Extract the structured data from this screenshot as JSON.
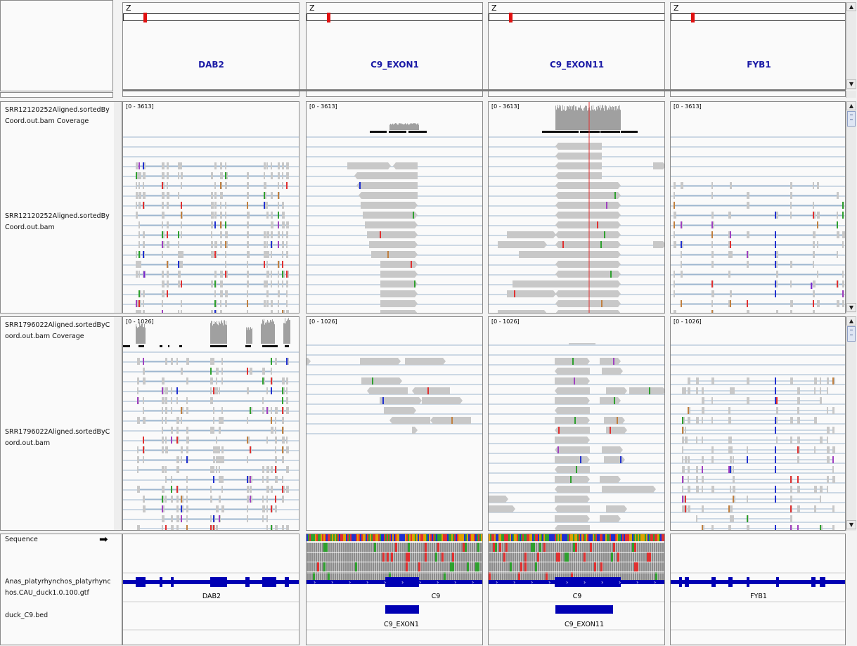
{
  "header": {
    "chromosome_label": "Z",
    "loci": [
      "DAB2",
      "C9_EXON1",
      "C9_EXON11",
      "FYB1"
    ]
  },
  "tracks": {
    "coverage_1": {
      "name": "SRR12120252Aligned.sortedByCoord.out.bam Coverage",
      "range": "[0 - 3613]"
    },
    "alignment_1": {
      "name": "SRR12120252Aligned.sortedByCoord.out.bam"
    },
    "coverage_2": {
      "name": "SRR1796022Aligned.sortedByCoord.out.bam Coverage",
      "range": "[0 - 1026]"
    },
    "alignment_2": {
      "name": "SRR1796022Aligned.sortedByCoord.out.bam"
    },
    "sequence": {
      "name": "Sequence",
      "arrow": "➡"
    },
    "gtf": {
      "name": "Anas_platyrhynchos_platyrhynchos.CAU_duck1.0.100.gtf",
      "features": [
        "DAB2",
        "C9",
        "C9",
        "FYB1"
      ]
    },
    "bed": {
      "name": "duck_C9.bed",
      "features": [
        "",
        "C9_EXON1",
        "C9_EXON11",
        ""
      ]
    }
  },
  "colors": {
    "locus_text": "#1a1aa6",
    "gene_feature": "#0000b4",
    "read": "#c8c8c8",
    "coverage": "#a0a0a0",
    "ideogram_marker": "#e01010"
  },
  "icons": {
    "scroll_up": "up-arrow-icon",
    "scroll_down": "down-arrow-icon",
    "sequence_strand": "right-arrow-icon"
  }
}
